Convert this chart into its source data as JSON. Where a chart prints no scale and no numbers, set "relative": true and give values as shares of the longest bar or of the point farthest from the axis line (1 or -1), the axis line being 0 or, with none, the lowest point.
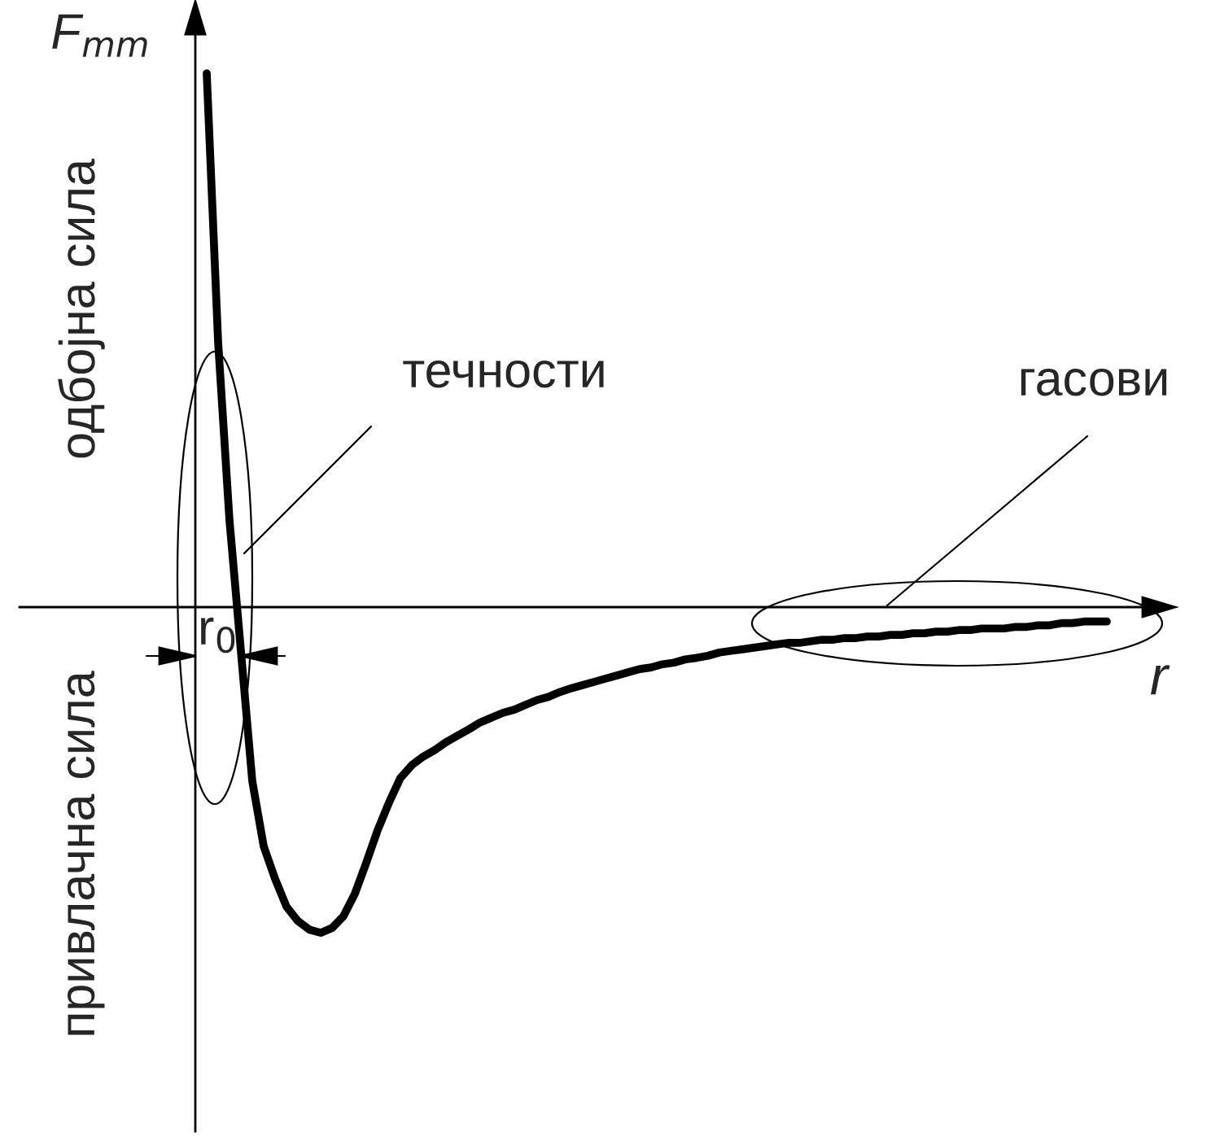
{
  "chart_data": {
    "type": "line",
    "relative": true,
    "xlabel": "r",
    "ylabel": "F$_{mm}$",
    "annotations": [
      "одбојна сила",
      "привлачна сила",
      "течности",
      "гасови",
      "r$_{0}$"
    ],
    "categories": [
      null,
      null,
      null,
      null,
      null,
      null,
      null,
      null,
      null,
      null,
      null,
      null,
      null,
      null,
      null,
      null,
      null,
      null,
      null,
      null,
      null,
      null,
      null,
      null,
      null,
      null,
      null,
      null,
      null,
      null,
      null,
      null,
      null,
      null,
      null,
      null,
      null,
      null,
      null,
      null,
      null,
      null,
      null,
      null,
      null,
      null,
      null,
      null,
      null,
      null,
      null,
      null,
      null,
      null,
      null,
      null,
      null,
      null,
      null,
      null,
      null,
      null,
      null,
      null,
      null,
      null,
      null,
      null,
      null,
      null,
      null,
      null,
      null,
      null,
      null,
      null,
      null,
      null,
      null,
      null
    ],
    "color": "#000000",
    "values": [
      1.0,
      0.497,
      0.162,
      -0.082,
      -0.326,
      -0.448,
      -0.509,
      -0.561,
      -0.588,
      -0.604,
      -0.61,
      -0.601,
      -0.579,
      -0.537,
      -0.479,
      -0.418,
      -0.366,
      -0.32,
      -0.296,
      -0.28,
      -0.268,
      -0.253,
      -0.241,
      -0.229,
      -0.216,
      -0.207,
      -0.198,
      -0.192,
      -0.183,
      -0.174,
      -0.168,
      -0.159,
      -0.152,
      -0.146,
      -0.14,
      -0.134,
      -0.128,
      -0.122,
      -0.116,
      -0.113,
      -0.107,
      -0.104,
      -0.098,
      -0.095,
      -0.091,
      -0.085,
      -0.082,
      -0.079,
      -0.076,
      -0.073,
      -0.07,
      -0.067,
      -0.067,
      -0.064,
      -0.061,
      -0.061,
      -0.058,
      -0.058,
      -0.055,
      -0.055,
      -0.052,
      -0.052,
      -0.049,
      -0.049,
      -0.046,
      -0.046,
      -0.043,
      -0.043,
      -0.04,
      -0.04,
      -0.04,
      -0.037,
      -0.037,
      -0.034,
      -0.034,
      -0.03,
      -0.03,
      -0.027,
      -0.027,
      -0.027
    ]
  }
}
